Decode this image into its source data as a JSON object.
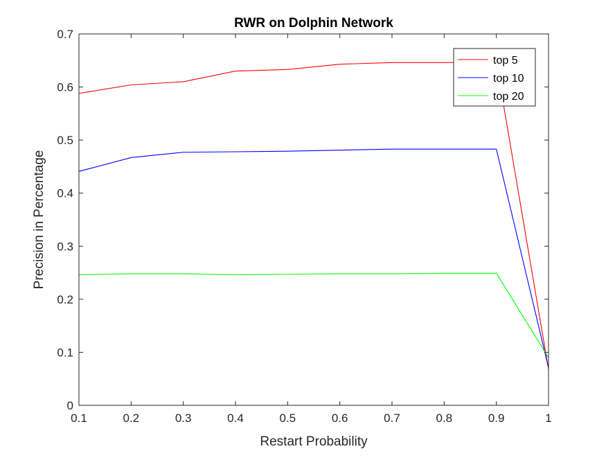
{
  "chart_data": {
    "type": "line",
    "title": "RWR on Dolphin Network",
    "xlabel": "Restart Probability",
    "ylabel": "Precision in Percentage",
    "xlim": [
      0.1,
      1.0
    ],
    "ylim": [
      0,
      0.7
    ],
    "x": [
      0.1,
      0.2,
      0.3,
      0.4,
      0.5,
      0.6,
      0.7,
      0.8,
      0.9,
      1.0
    ],
    "xticks": [
      "0.1",
      "0.2",
      "0.3",
      "0.4",
      "0.5",
      "0.6",
      "0.7",
      "0.8",
      "0.9",
      "1"
    ],
    "yticks": [
      "0",
      "0.1",
      "0.2",
      "0.3",
      "0.4",
      "0.5",
      "0.6",
      "0.7"
    ],
    "grid": false,
    "legend_position": "top-right",
    "series": [
      {
        "name": "top 5",
        "color": "#ff0000",
        "values": [
          0.588,
          0.604,
          0.61,
          0.63,
          0.633,
          0.643,
          0.646,
          0.646,
          0.646,
          0.068
        ]
      },
      {
        "name": "top 10",
        "color": "#0000ff",
        "values": [
          0.441,
          0.467,
          0.477,
          0.478,
          0.479,
          0.481,
          0.483,
          0.483,
          0.483,
          0.071
        ]
      },
      {
        "name": "top 20",
        "color": "#00ff00",
        "values": [
          0.246,
          0.248,
          0.248,
          0.246,
          0.247,
          0.248,
          0.248,
          0.249,
          0.249,
          0.09
        ]
      }
    ]
  }
}
